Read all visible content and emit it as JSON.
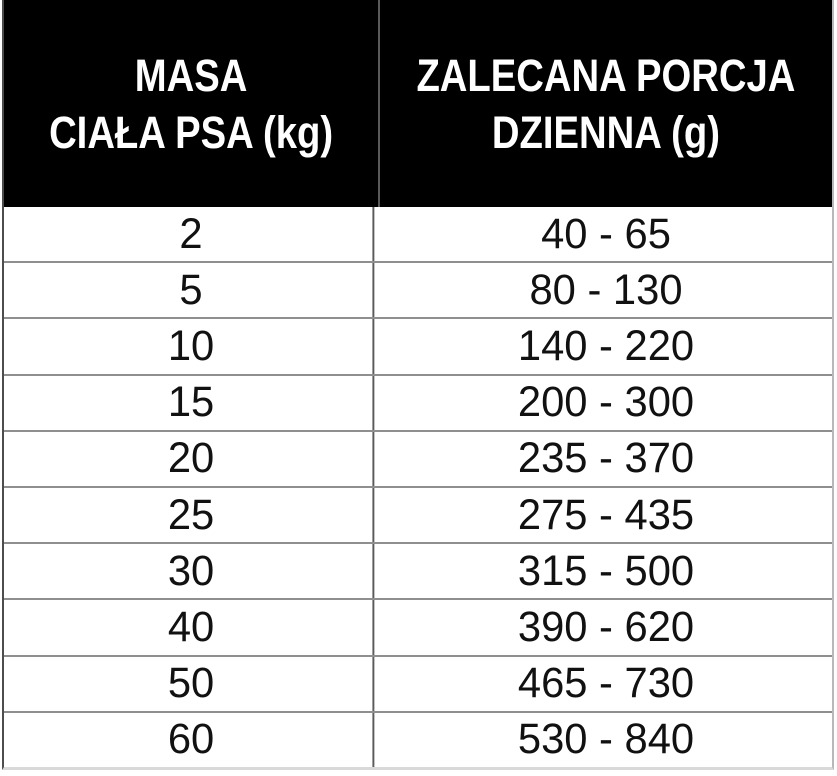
{
  "chart_data": {
    "type": "table",
    "columns": [
      {
        "header_line1": "MASA",
        "header_line2": "CIAŁA PSA (kg)"
      },
      {
        "header_line1": "ZALECANA PORCJA",
        "header_line2": "DZIENNA (g)"
      }
    ],
    "rows": [
      {
        "mass": "2",
        "portion": "40 - 65"
      },
      {
        "mass": "5",
        "portion": "80 - 130"
      },
      {
        "mass": "10",
        "portion": "140 - 220"
      },
      {
        "mass": "15",
        "portion": "200 - 300"
      },
      {
        "mass": "20",
        "portion": "235 - 370"
      },
      {
        "mass": "25",
        "portion": "275 - 435"
      },
      {
        "mass": "30",
        "portion": "315 - 500"
      },
      {
        "mass": "40",
        "portion": "390 - 620"
      },
      {
        "mass": "50",
        "portion": "465 - 730"
      },
      {
        "mass": "60",
        "portion": "530 - 840"
      }
    ]
  },
  "colors": {
    "header_bg": "#000000",
    "header_text": "#ffffff",
    "body_bg": "#ffffff",
    "body_text": "#111111",
    "row_separator": "#8f8f8f",
    "column_divider": "#5a5a5a",
    "outer_left_border": "#4d4d4d",
    "outer_right_border": "#b8b8b8",
    "outer_bottom_border": "#d9d9d9"
  }
}
